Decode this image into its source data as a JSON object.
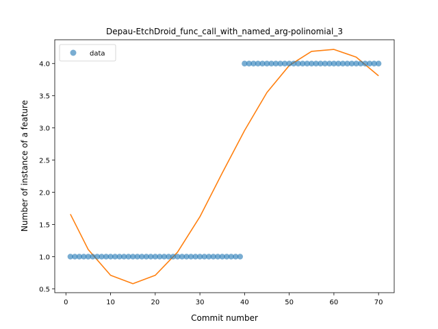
{
  "chart_data": {
    "type": "scatter",
    "title": "Depau-EtchDroid_func_call_with_named_arg-polinomial_3",
    "xlabel": "Commit number",
    "ylabel": "Number of instance of a feature",
    "xlim": [
      -2.5,
      73.5
    ],
    "ylim": [
      0.44,
      4.37
    ],
    "xticks": [
      0,
      10,
      20,
      30,
      40,
      50,
      60,
      70
    ],
    "yticks": [
      0.5,
      1.0,
      1.5,
      2.0,
      2.5,
      3.0,
      3.5,
      4.0
    ],
    "xtick_labels": [
      "0",
      "10",
      "20",
      "30",
      "40",
      "50",
      "60",
      "70"
    ],
    "ytick_labels": [
      "0.5",
      "1.0",
      "1.5",
      "2.0",
      "2.5",
      "3.0",
      "3.5",
      "4.0"
    ],
    "legend": {
      "placement": "top-left",
      "entries": [
        "data"
      ]
    },
    "grid": false,
    "series": [
      {
        "name": "data",
        "kind": "scatter",
        "color": "#1f77b4",
        "x": [
          1,
          2,
          3,
          4,
          5,
          6,
          7,
          8,
          9,
          10,
          11,
          12,
          13,
          14,
          15,
          16,
          17,
          18,
          19,
          20,
          21,
          22,
          23,
          24,
          25,
          26,
          27,
          28,
          29,
          30,
          31,
          32,
          33,
          34,
          35,
          36,
          37,
          38,
          39,
          40,
          41,
          42,
          43,
          44,
          45,
          46,
          47,
          48,
          49,
          50,
          51,
          52,
          53,
          54,
          55,
          56,
          57,
          58,
          59,
          60,
          61,
          62,
          63,
          64,
          65,
          66,
          67,
          68,
          69,
          70
        ],
        "y": [
          1,
          1,
          1,
          1,
          1,
          1,
          1,
          1,
          1,
          1,
          1,
          1,
          1,
          1,
          1,
          1,
          1,
          1,
          1,
          1,
          1,
          1,
          1,
          1,
          1,
          1,
          1,
          1,
          1,
          1,
          1,
          1,
          1,
          1,
          1,
          1,
          1,
          1,
          1,
          4,
          4,
          4,
          4,
          4,
          4,
          4,
          4,
          4,
          4,
          4,
          4,
          4,
          4,
          4,
          4,
          4,
          4,
          4,
          4,
          4,
          4,
          4,
          4,
          4,
          4,
          4,
          4,
          4,
          4,
          4
        ]
      },
      {
        "kind": "line",
        "color": "#ff7f0e",
        "fit": "polynomial degree 3",
        "x": [
          1,
          5,
          10,
          15,
          20,
          25,
          30,
          35,
          40,
          45,
          50,
          55,
          60,
          65,
          70
        ],
        "y": [
          1.66,
          1.11,
          0.71,
          0.58,
          0.71,
          1.07,
          1.62,
          2.3,
          2.96,
          3.55,
          3.97,
          4.19,
          4.22,
          4.1,
          3.81
        ]
      }
    ]
  }
}
